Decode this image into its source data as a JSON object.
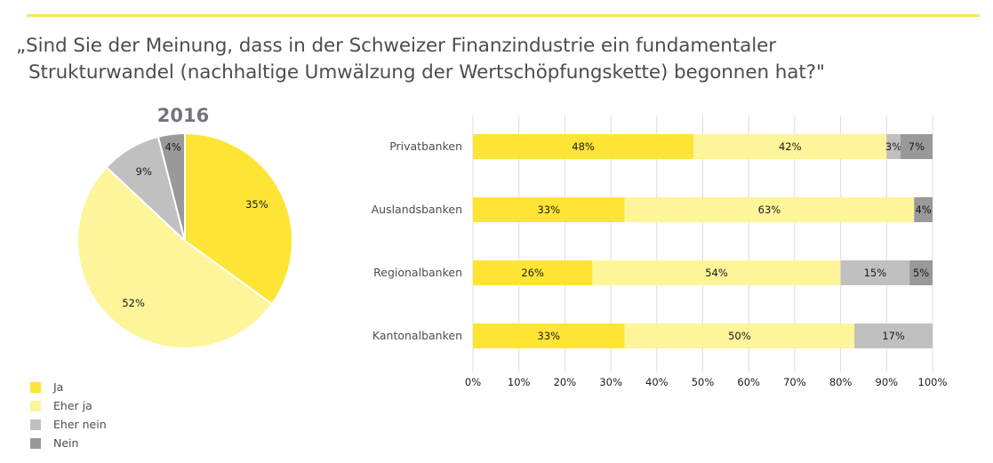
{
  "header": {
    "title_line1": "„Sind Sie der Meinung, dass in der Schweizer Finanzindustrie ein fundamentaler",
    "title_line2": "Strukturwandel (nachhaltige Umwälzung der Wertschöpfungskette) begonnen hat?\""
  },
  "colors": {
    "accent_rule": "#fde457",
    "Ja": "#fee535",
    "Eher ja": "#fef49a",
    "Eher nein": "#c0c0c0",
    "Nein": "#999999"
  },
  "chart_data": [
    {
      "type": "pie",
      "title": "2016",
      "labels": [
        "Ja",
        "Eher ja",
        "Eher nein",
        "Nein"
      ],
      "values": [
        35,
        52,
        9,
        4
      ],
      "value_labels": [
        "35%",
        "52%",
        "9%",
        "4%"
      ],
      "unit": "%"
    },
    {
      "type": "bar",
      "orientation": "horizontal",
      "stacked": true,
      "categories": [
        "Privatbanken",
        "Auslandsbanken",
        "Regionalbanken",
        "Kantonalbanken"
      ],
      "series": [
        {
          "name": "Ja",
          "values": [
            48,
            33,
            26,
            33
          ]
        },
        {
          "name": "Eher ja",
          "values": [
            42,
            63,
            54,
            50
          ]
        },
        {
          "name": "Eher nein",
          "values": [
            3,
            0,
            15,
            17
          ]
        },
        {
          "name": "Nein",
          "values": [
            7,
            4,
            5,
            0
          ]
        }
      ],
      "xlim": [
        0,
        100
      ],
      "xticks": [
        "0%",
        "10%",
        "20%",
        "30%",
        "40%",
        "50%",
        "60%",
        "70%",
        "80%",
        "90%",
        "100%"
      ],
      "grid": true,
      "xlabel": "",
      "ylabel": ""
    }
  ],
  "legend": {
    "placement": "bottom-left",
    "items": [
      "Ja",
      "Eher ja",
      "Eher nein",
      "Nein"
    ]
  }
}
